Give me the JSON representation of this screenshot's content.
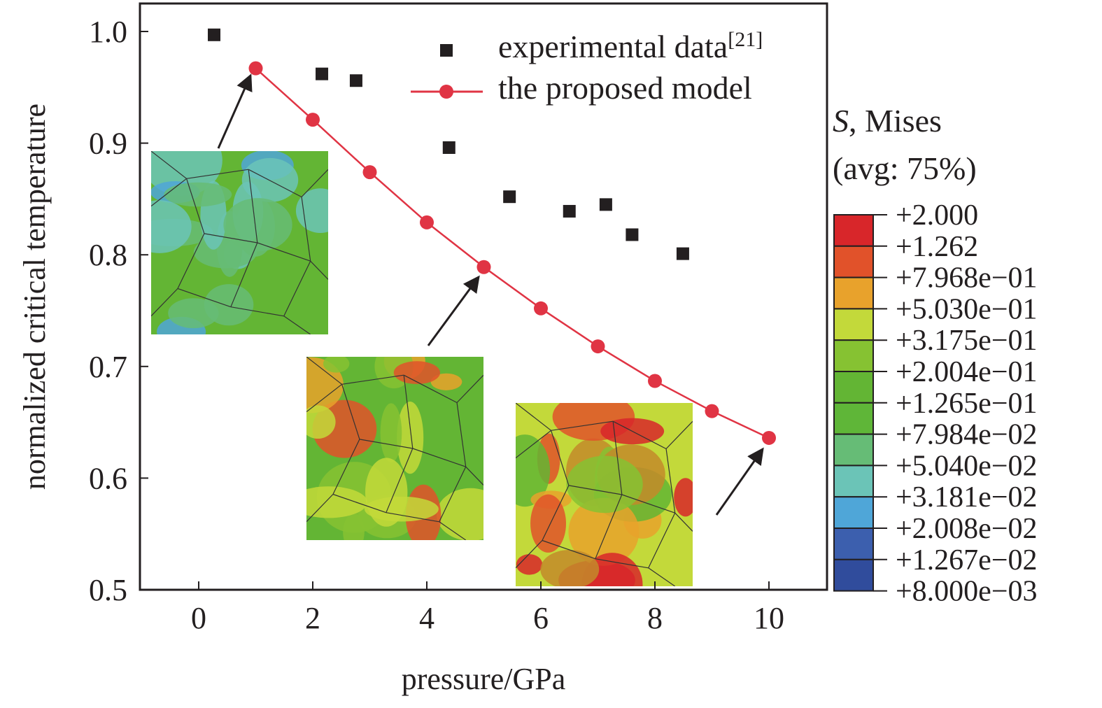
{
  "chart_data": {
    "type": "scatter",
    "xlabel": "pressure/GPa",
    "ylabel": "normalized critical temperature",
    "xlim": [
      -1,
      11
    ],
    "ylim": [
      0.5,
      1.025
    ],
    "xticks": [
      "0",
      "2",
      "4",
      "6",
      "8",
      "10"
    ],
    "yticks": [
      "0.5",
      "0.6",
      "0.7",
      "0.8",
      "0.9",
      "1.0"
    ],
    "grid": false,
    "legend_position": "top-right",
    "series": [
      {
        "name": "experimental data",
        "name_superscript": "[21]",
        "marker": "square",
        "color": "#231f20",
        "x": [
          0.27,
          2.16,
          2.76,
          4.39,
          5.45,
          6.5,
          7.14,
          7.6,
          8.49
        ],
        "y": [
          0.997,
          0.962,
          0.956,
          0.896,
          0.852,
          0.839,
          0.845,
          0.818,
          0.801
        ]
      },
      {
        "name": "the proposed model",
        "marker": "circle-line",
        "color": "#e03444",
        "x": [
          1,
          2,
          3,
          4,
          5,
          6,
          7,
          8,
          9,
          10
        ],
        "y": [
          0.967,
          0.921,
          0.874,
          0.829,
          0.789,
          0.752,
          0.718,
          0.687,
          0.66,
          0.636
        ]
      }
    ],
    "colorbar": {
      "title_italic": "S",
      "title_rest": ", Mises",
      "subtitle": "(avg: 75%)",
      "labels": [
        "+2.000",
        "+1.262",
        "+7.968e−01",
        "+5.030e−01",
        "+3.175e−01",
        "+2.004e−01",
        "+1.265e−01",
        "+7.984e−02",
        "+5.040e−02",
        "+3.181e−02",
        "+2.008e−02",
        "+1.267e−02",
        "+8.000e−03"
      ],
      "colors": [
        "#d8262a",
        "#e1522a",
        "#e8a22c",
        "#c3d93a",
        "#86c232",
        "#63b534",
        "#5fb638",
        "#66bc76",
        "#6bc4b7",
        "#4fa6d8",
        "#3c5fae",
        "#304c9c"
      ]
    },
    "insets": [
      {
        "points_to_x": 1,
        "style": "low-stress"
      },
      {
        "points_to_x": 5,
        "style": "medium-stress"
      },
      {
        "points_to_x": 10,
        "style": "high-stress"
      }
    ]
  }
}
